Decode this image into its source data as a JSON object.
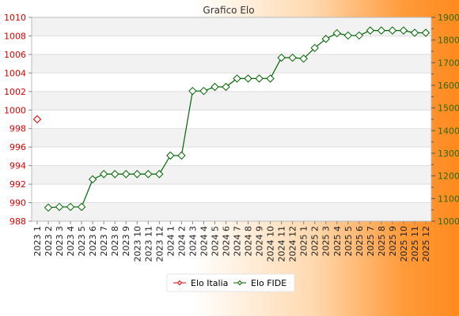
{
  "chart_data": {
    "type": "line",
    "title": "Grafico Elo",
    "x": [
      "2023 1",
      "2023 2",
      "2023 3",
      "2023 4",
      "2023 5",
      "2023 6",
      "2023 7",
      "2023 8",
      "2023 9",
      "2023 10",
      "2023 11",
      "2023 12",
      "2024 1",
      "2024 2",
      "2024 3",
      "2024 4",
      "2024 5",
      "2024 6",
      "2024 7",
      "2024 8",
      "2024 9",
      "2024 10",
      "2024 11",
      "2024 12",
      "2025 1",
      "2025 2",
      "2025 3",
      "2025 4",
      "2025 5",
      "2025 6",
      "2025 7",
      "2025 8",
      "2025 9",
      "2025 10",
      "2025 11",
      "2025 12"
    ],
    "y_left": {
      "min": 988,
      "max": 1010,
      "ticks": [
        988,
        990,
        992,
        994,
        996,
        998,
        1000,
        1002,
        1004,
        1006,
        1008,
        1010
      ]
    },
    "y_right": {
      "min": 1000,
      "max": 1900,
      "ticks": [
        1000,
        1100,
        1200,
        1300,
        1400,
        1500,
        1600,
        1700,
        1800,
        1900
      ]
    },
    "series": [
      {
        "name": "Elo Italia",
        "axis": "left",
        "color": "#dd0000",
        "values": [
          999,
          null,
          null,
          null,
          null,
          null,
          null,
          null,
          null,
          null,
          null,
          null,
          null,
          null,
          null,
          null,
          null,
          null,
          null,
          null,
          null,
          null,
          null,
          null,
          null,
          null,
          null,
          null,
          null,
          null,
          null,
          null,
          null,
          null,
          null,
          null
        ]
      },
      {
        "name": "Elo FIDE",
        "axis": "right",
        "color": "#006600",
        "values": [
          null,
          1060,
          1063,
          1063,
          1063,
          1185,
          1208,
          1208,
          1208,
          1208,
          1208,
          1208,
          1290,
          1290,
          1575,
          1575,
          1593,
          1593,
          1630,
          1630,
          1630,
          1630,
          1722,
          1722,
          1718,
          1765,
          1805,
          1830,
          1820,
          1820,
          1842,
          1842,
          1842,
          1842,
          1832,
          1832
        ]
      }
    ],
    "legend": "bottom",
    "grid": true
  }
}
